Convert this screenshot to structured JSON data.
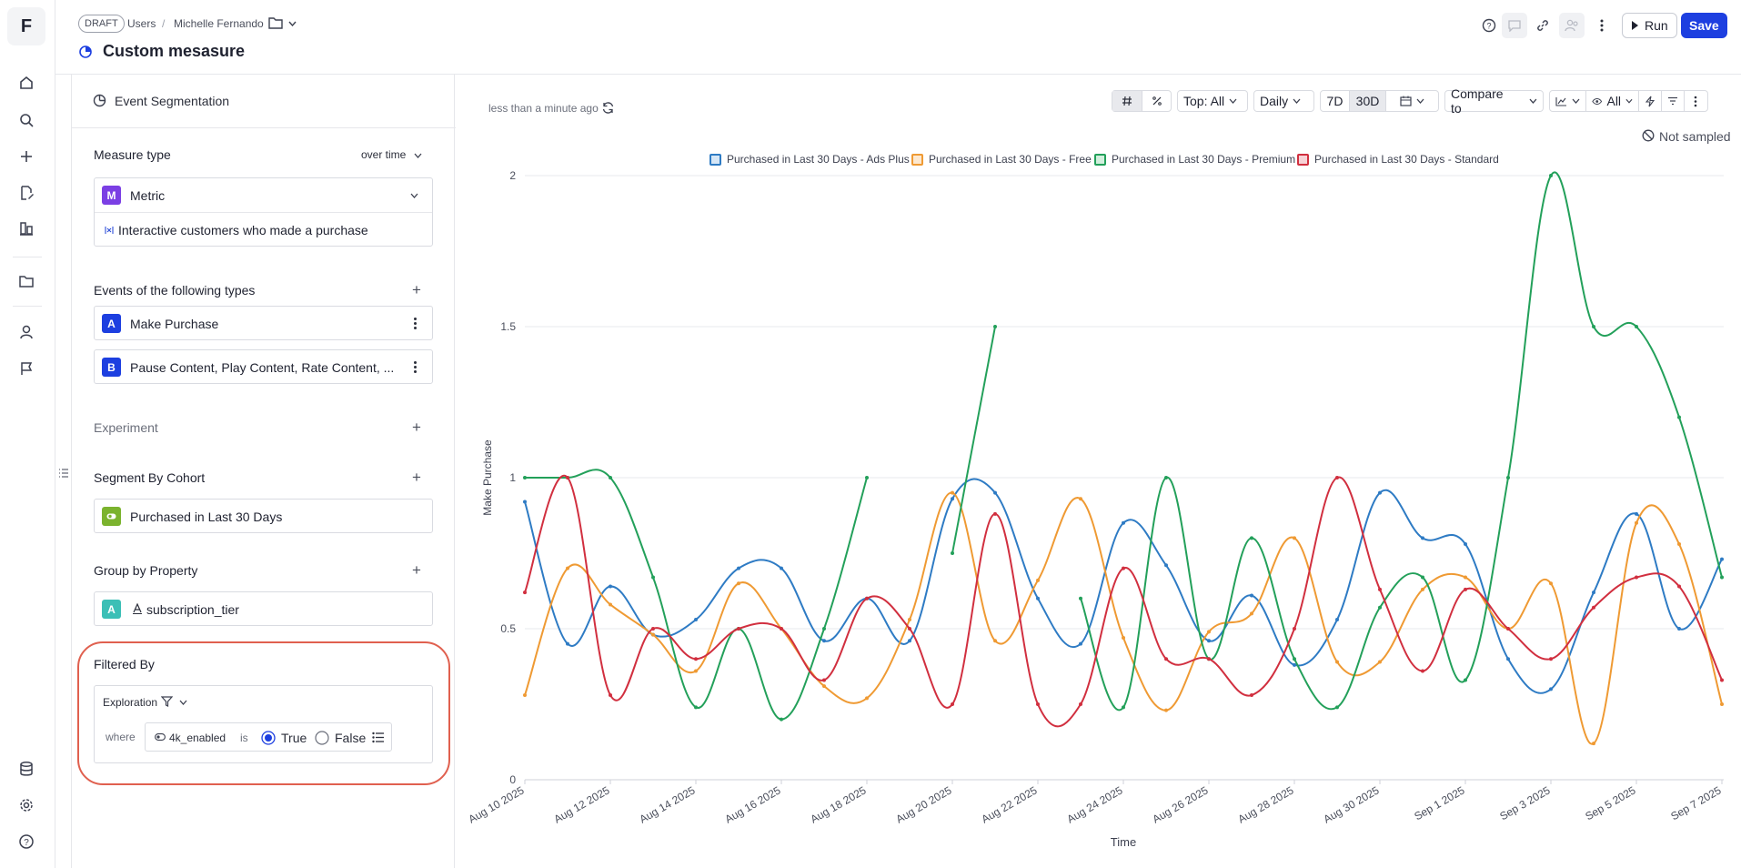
{
  "app": {
    "logo_letter": "F"
  },
  "rail": {
    "top_icons": [
      "home-icon",
      "search-icon",
      "plus-icon",
      "edit-document-icon",
      "boards-icon",
      "folder-icon",
      "user-icon",
      "flag-icon"
    ],
    "bottom_icons": [
      "database-icon",
      "settings-icon",
      "help-icon"
    ]
  },
  "header": {
    "draft_badge": "DRAFT",
    "breadcrumb": [
      "Users",
      "/",
      "Michelle Fernando"
    ],
    "title": "Custom mesasure",
    "run_label": "Run",
    "save_label": "Save"
  },
  "panel": {
    "report_type": "Event Segmentation",
    "measure_type_title": "Measure type",
    "measure_type_mode": "over time",
    "metric_letter": "M",
    "metric_label": "Metric",
    "metric_formula": "Interactive customers who made a purchase",
    "events_title": "Events of the following types",
    "events": [
      {
        "letter": "A",
        "label": "Make Purchase"
      },
      {
        "letter": "B",
        "label": "Pause Content, Play Content, Rate Content, ..."
      }
    ],
    "experiment_title": "Experiment",
    "segment_title": "Segment By Cohort",
    "segment_value": "Purchased in Last 30 Days",
    "group_title": "Group by Property",
    "group_letter": "A",
    "group_value": "subscription_tier",
    "filter_title": "Filtered By",
    "filter_source": "Exploration",
    "filter_where": "where",
    "filter_property": "4k_enabled",
    "filter_is": "is",
    "filter_true": "True",
    "filter_false": "False",
    "filter_selected": "True"
  },
  "toolbar": {
    "updated": "less than a minute ago",
    "top": "Top: All",
    "interval": "Daily",
    "range_7d": "7D",
    "range_30d": "30D",
    "compare": "Compare to",
    "visibility": "All",
    "sampling": "Not sampled"
  },
  "colors": {
    "accent": "#1d3fe0",
    "highlight_ring": "#e0604f",
    "series_ads_plus": "#2e7bc4",
    "series_free": "#ef9a33",
    "series_premium": "#23a05a",
    "series_standard": "#d12f3f"
  },
  "chart_data": {
    "type": "line",
    "xlabel": "Time",
    "ylabel": "Make Purchase",
    "ylim": [
      0,
      2
    ],
    "yticks": [
      "0",
      "0.5",
      "1",
      "1.5",
      "2"
    ],
    "grid": true,
    "legend_position": "top",
    "x": [
      "Aug 10 2025",
      "Aug 11 2025",
      "Aug 12 2025",
      "Aug 13 2025",
      "Aug 14 2025",
      "Aug 15 2025",
      "Aug 16 2025",
      "Aug 17 2025",
      "Aug 18 2025",
      "Aug 19 2025",
      "Aug 20 2025",
      "Aug 21 2025",
      "Aug 22 2025",
      "Aug 23 2025",
      "Aug 24 2025",
      "Aug 25 2025",
      "Aug 26 2025",
      "Aug 27 2025",
      "Aug 28 2025",
      "Aug 29 2025",
      "Aug 30 2025",
      "Aug 31 2025",
      "Sep 1 2025",
      "Sep 2 2025",
      "Sep 3 2025",
      "Sep 4 2025",
      "Sep 5 2025",
      "Sep 6 2025",
      "Sep 7 2025"
    ],
    "xtick_labels": [
      "Aug 10 2025",
      "Aug 12 2025",
      "Aug 14 2025",
      "Aug 16 2025",
      "Aug 18 2025",
      "Aug 20 2025",
      "Aug 22 2025",
      "Aug 24 2025",
      "Aug 26 2025",
      "Aug 28 2025",
      "Aug 30 2025",
      "Sep 1 2025",
      "Sep 3 2025",
      "Sep 5 2025",
      "Sep 7 2025"
    ],
    "series": [
      {
        "name": "Purchased in Last 30 Days - Ads Plus",
        "color": "#2e7bc4",
        "values": [
          0.92,
          0.45,
          0.64,
          0.48,
          0.53,
          0.7,
          0.7,
          0.46,
          0.6,
          0.46,
          0.93,
          0.95,
          0.6,
          0.45,
          0.85,
          0.71,
          0.46,
          0.61,
          0.38,
          0.53,
          0.95,
          0.8,
          0.78,
          0.4,
          0.3,
          0.62,
          0.88,
          0.5,
          0.73
        ]
      },
      {
        "name": "Purchased in Last 30 Days - Free",
        "color": "#ef9a33",
        "values": [
          0.28,
          0.7,
          0.58,
          0.48,
          0.36,
          0.65,
          0.5,
          0.31,
          0.27,
          0.53,
          0.95,
          0.46,
          0.66,
          0.93,
          0.47,
          0.23,
          0.49,
          0.55,
          0.8,
          0.39,
          0.39,
          0.63,
          0.67,
          0.5,
          0.65,
          0.12,
          0.85,
          0.78,
          0.25
        ]
      },
      {
        "name": "Purchased in Last 30 Days - Premium",
        "color": "#23a05a",
        "values": [
          1.0,
          1.0,
          1.0,
          0.67,
          0.24,
          0.5,
          0.2,
          0.5,
          1.0,
          null,
          0.75,
          1.5,
          null,
          0.6,
          0.24,
          1.0,
          0.4,
          0.8,
          0.4,
          0.24,
          0.57,
          0.67,
          0.33,
          1.0,
          2.0,
          1.5,
          1.5,
          1.2,
          0.67
        ]
      },
      {
        "name": "Purchased in Last 30 Days - Standard",
        "color": "#d12f3f",
        "values": [
          0.62,
          1.0,
          0.28,
          0.5,
          0.4,
          0.5,
          0.5,
          0.33,
          0.6,
          0.5,
          0.25,
          0.88,
          0.25,
          0.25,
          0.7,
          0.4,
          0.4,
          0.28,
          0.5,
          1.0,
          0.63,
          0.36,
          0.63,
          0.5,
          0.4,
          0.57,
          0.67,
          0.64,
          0.33
        ]
      }
    ]
  }
}
